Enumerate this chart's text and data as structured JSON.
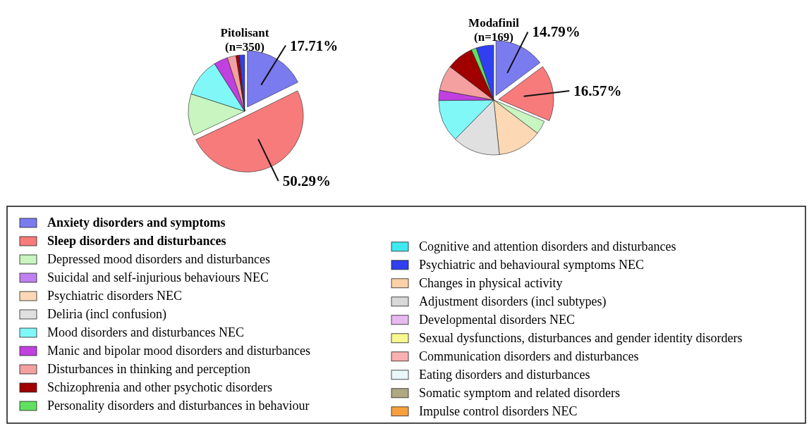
{
  "chart_data": {
    "type": "pie",
    "legend": "bottom",
    "categories": [
      "Anxiety disorders and symptoms",
      "Sleep disorders and disturbances",
      "Depressed mood disorders and disturbances",
      "Suicidal and self-injurious behaviours NEC",
      "Psychiatric disorders NEC",
      "Deliria (incl confusion)",
      "Mood disorders and disturbances NEC",
      "Manic and bipolar mood disorders and disturbances",
      "Disturbances in thinking and perception",
      "Schizophrenia and other psychotic disorders",
      "Personality disorders and disturbances in behaviour",
      "Cognitive and attention disorders and disturbances",
      "Psychiatric and behavioural symptoms NEC",
      "Changes in physical activity",
      "Adjustment disorders (incl subtypes)",
      "Developmental disorders NEC",
      "Sexual dysfunctions, disturbances and gender identity disorders",
      "Communication disorders and disturbances",
      "Eating disorders and disturbances",
      "Somatic symptom and related disorders",
      "Impulse control disorders NEC"
    ],
    "colors": [
      "#7b7bf0",
      "#f77b7b",
      "#c8f5c0",
      "#c080f0",
      "#fcd8b4",
      "#e0e0e0",
      "#80f8f8",
      "#c040e0",
      "#f4a0a0",
      "#a00000",
      "#60e060",
      "#40e8f0",
      "#3040f0",
      "#fcd0a8",
      "#d8d8d8",
      "#e8b8f0",
      "#f8f890",
      "#f8b0b0",
      "#e8f8f8",
      "#b0a880",
      "#f8a040"
    ],
    "series": [
      {
        "name": "Pitolisant\n(n=350)",
        "values": [
          17.71,
          50.29,
          12,
          0,
          0,
          0,
          11,
          4,
          2.5,
          1,
          0,
          0,
          1.5,
          0,
          0,
          0,
          0,
          0,
          0,
          0,
          0
        ],
        "value_labels": [
          "17.71%",
          "50.29%",
          null,
          null,
          null,
          null,
          null,
          null,
          null,
          null,
          null,
          null,
          null,
          null,
          null,
          null,
          null,
          null,
          null,
          null,
          null
        ]
      },
      {
        "name": "Modafinil\n(n=169)",
        "values": [
          14.79,
          16.57,
          4,
          0,
          13,
          14,
          12.5,
          3,
          7.5,
          8,
          1.5,
          0,
          5.14,
          0,
          0,
          0,
          0,
          0,
          0,
          0,
          0
        ],
        "value_labels": [
          "14.79%",
          "16.57%",
          null,
          null,
          null,
          null,
          null,
          null,
          null,
          null,
          null,
          null,
          null,
          null,
          null,
          null,
          null,
          null,
          null,
          null,
          null
        ]
      }
    ]
  }
}
